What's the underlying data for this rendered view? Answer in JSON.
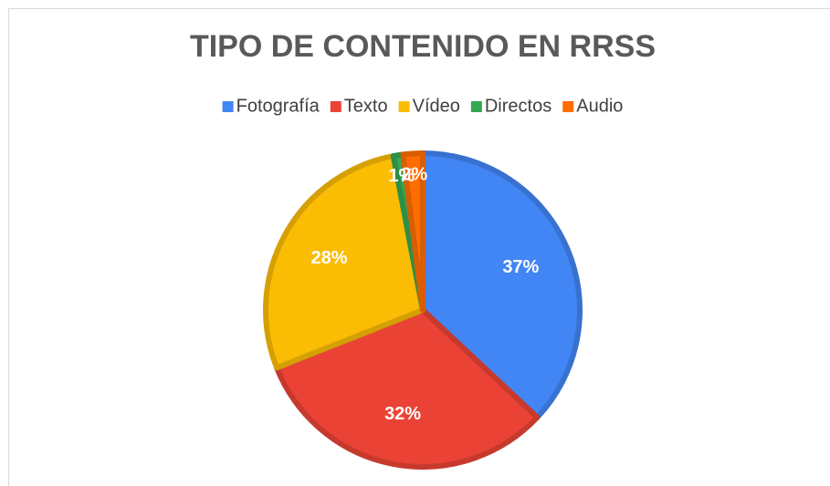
{
  "chart_data": {
    "type": "pie",
    "title": "TIPO DE CONTENIDO EN RRSS",
    "categories": [
      "Fotografía",
      "Texto",
      "Vídeo",
      "Directos",
      "Audio"
    ],
    "values": [
      37,
      32,
      28,
      1,
      2
    ],
    "value_labels": [
      "37%",
      "32%",
      "28%",
      "1%",
      "2%"
    ],
    "colors": [
      "#4285f4",
      "#ea4335",
      "#fbbc04",
      "#34a853",
      "#ff6d01"
    ],
    "legend": "top"
  }
}
